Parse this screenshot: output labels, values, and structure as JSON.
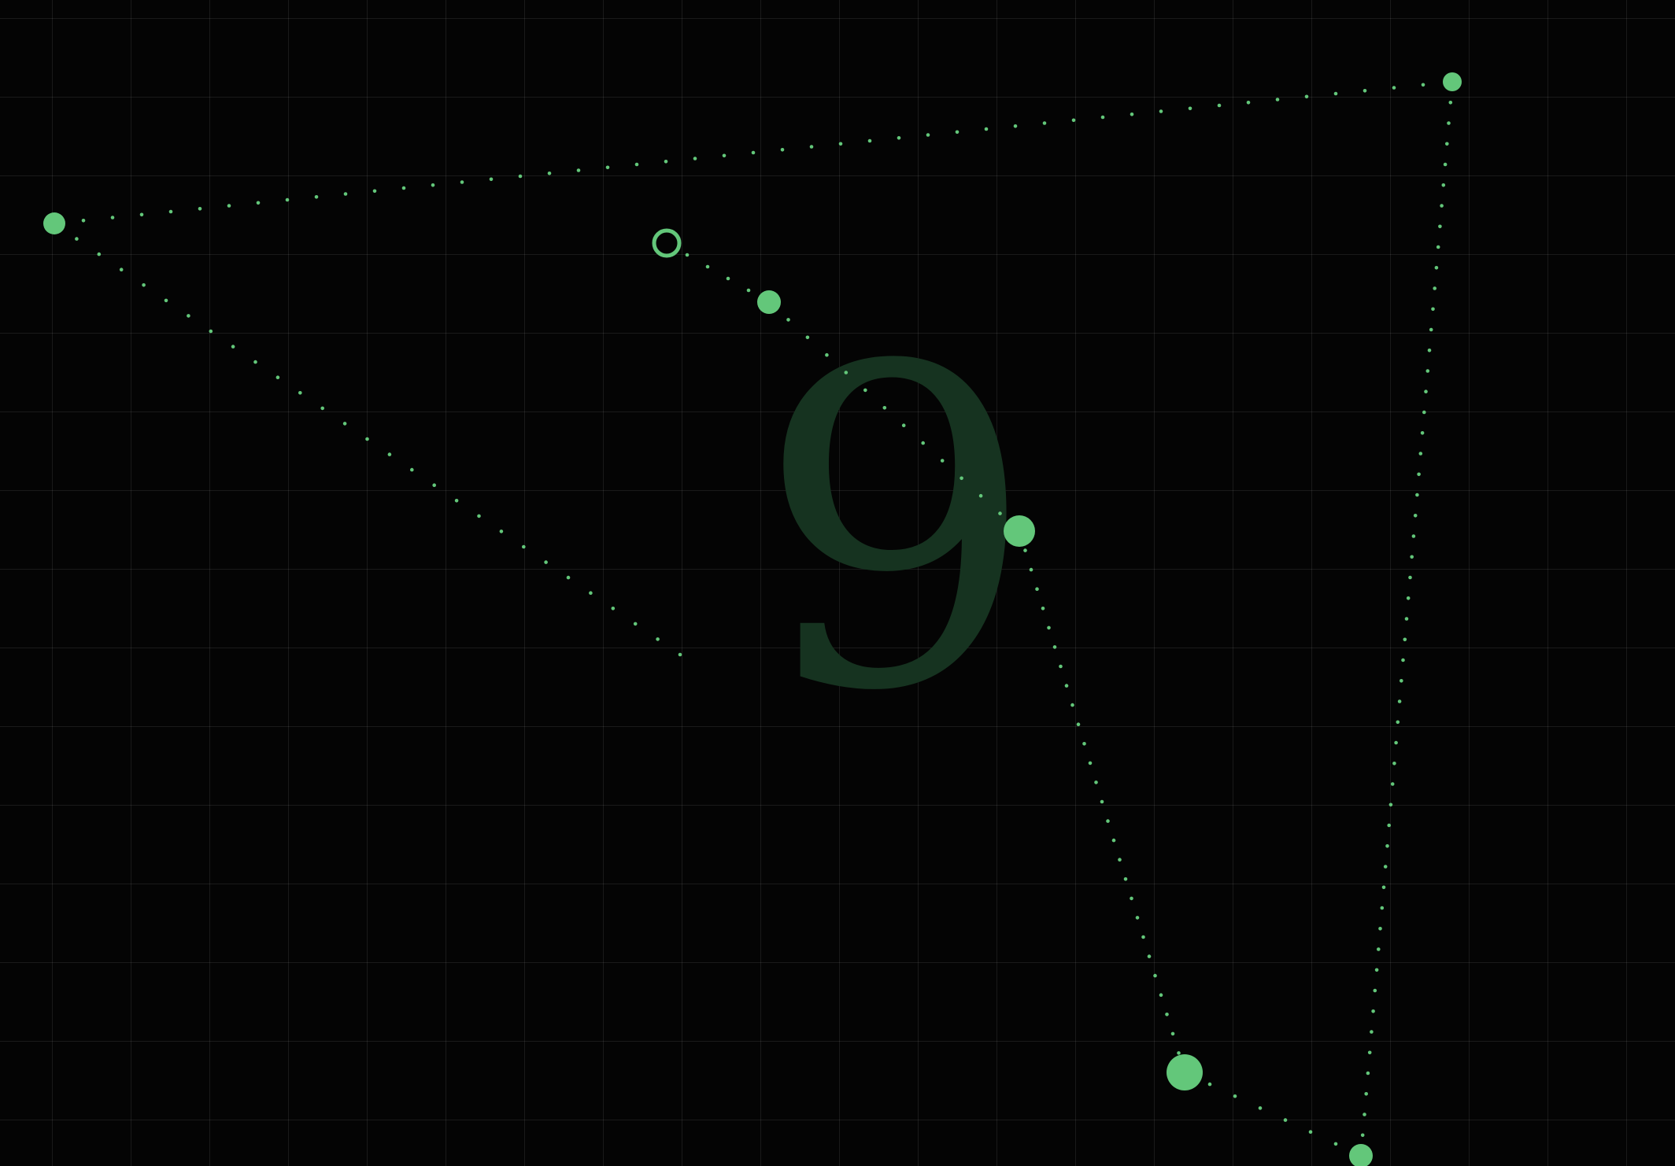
{
  "level": {
    "number": "9"
  },
  "colors": {
    "accent": "#63c77a",
    "background": "#040404",
    "digit": "#163320"
  }
}
